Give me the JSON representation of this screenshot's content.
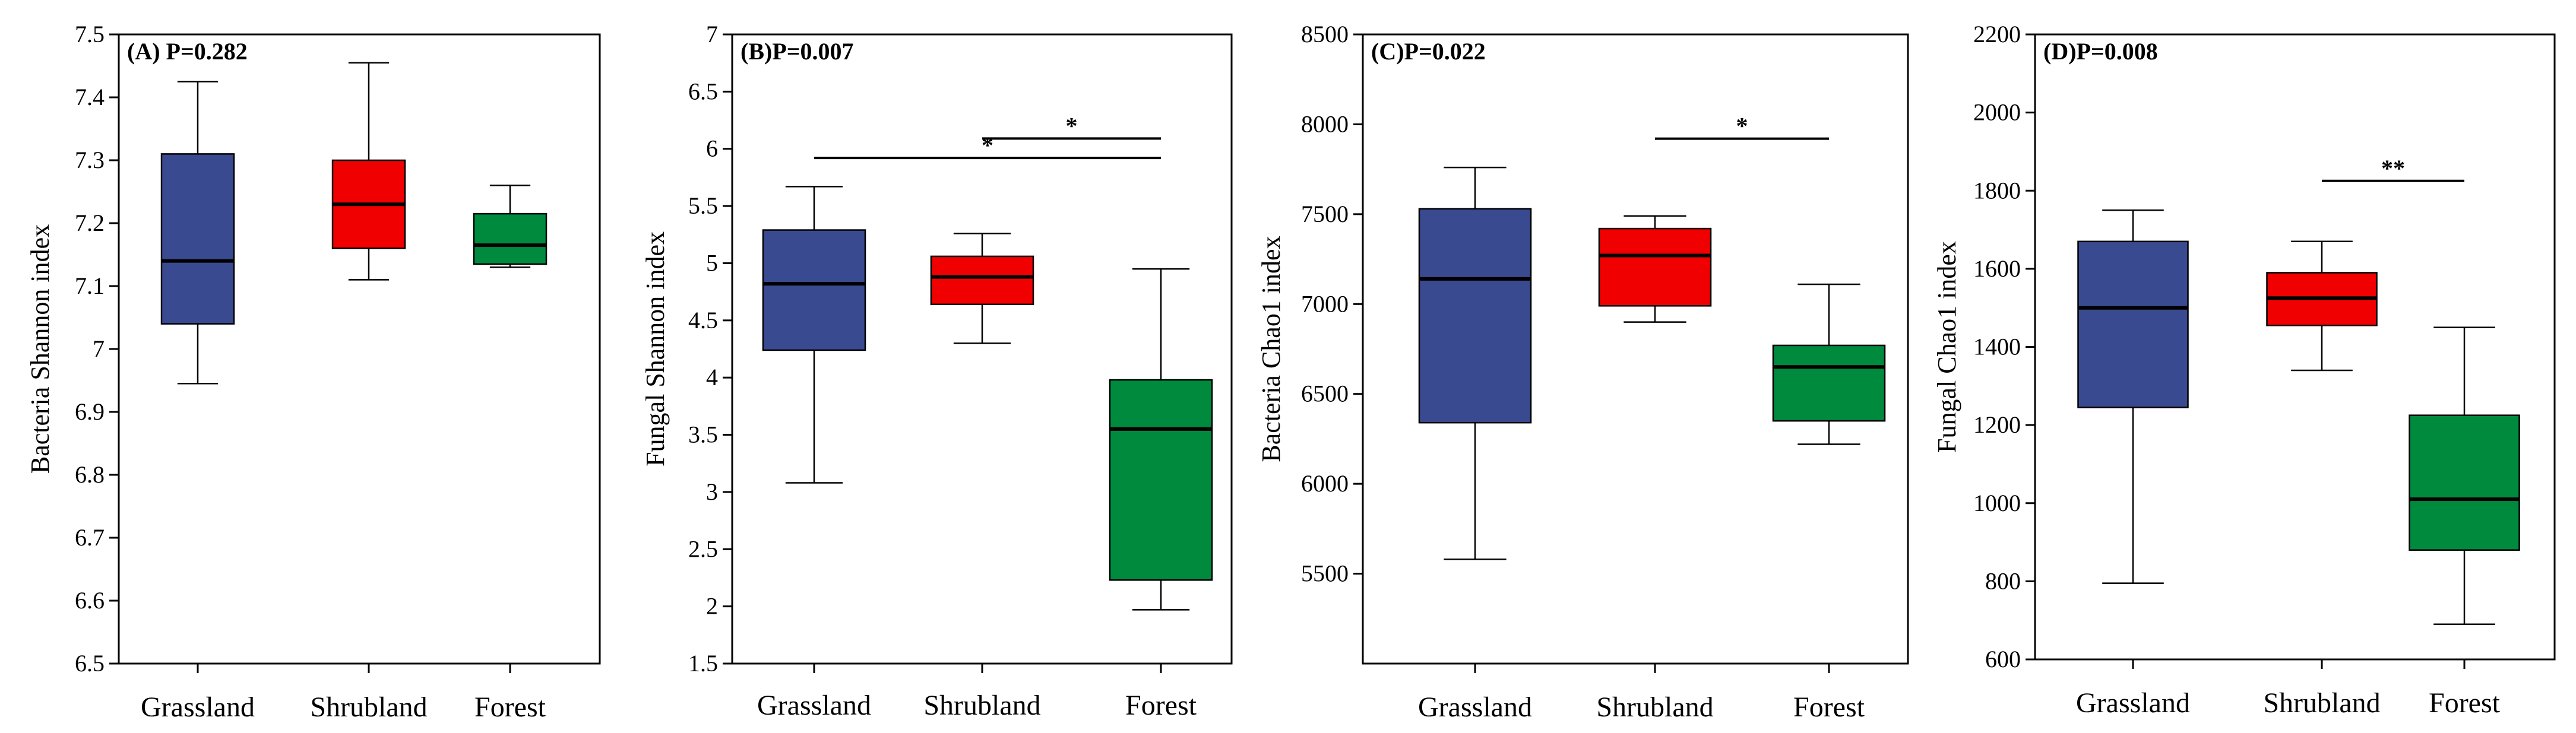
{
  "colors": {
    "Grassland": "#3a4a91",
    "Shrubland": "#f00000",
    "Forest": "#008a3e",
    "axis": "#000000"
  },
  "chart_data": [
    {
      "type": "box",
      "title": "(A) P=0.282",
      "xlabel": "",
      "ylabel": "Bacteria Shannon index",
      "ylim": [
        6.5,
        7.5
      ],
      "yticks": [
        6.5,
        6.6,
        6.7,
        6.8,
        6.9,
        7,
        7.1,
        7.2,
        7.3,
        7.4,
        7.5
      ],
      "categories": [
        "Grassland",
        "Shrubland",
        "Forest"
      ],
      "boxes": [
        {
          "category": "Grassland",
          "min": 6.945,
          "q1": 7.04,
          "median": 7.14,
          "q3": 7.31,
          "max": 7.425
        },
        {
          "category": "Shrubland",
          "min": 7.11,
          "q1": 7.16,
          "median": 7.23,
          "q3": 7.3,
          "max": 7.455
        },
        {
          "category": "Forest",
          "min": 7.13,
          "q1": 7.135,
          "median": 7.165,
          "q3": 7.215,
          "max": 7.26
        }
      ],
      "significance": []
    },
    {
      "type": "box",
      "title": "(B)P=0.007",
      "xlabel": "",
      "ylabel": "Fungal Shannon index",
      "ylim": [
        1.5,
        7
      ],
      "yticks": [
        1.5,
        2,
        2.5,
        3,
        3.5,
        4,
        4.5,
        5,
        5.5,
        6,
        6.5,
        7
      ],
      "categories": [
        "Grassland",
        "Shrubland",
        "Forest"
      ],
      "boxes": [
        {
          "category": "Grassland",
          "min": 3.08,
          "q1": 4.24,
          "median": 4.82,
          "q3": 5.29,
          "max": 5.67
        },
        {
          "category": "Shrubland",
          "min": 4.3,
          "q1": 4.64,
          "median": 4.88,
          "q3": 5.06,
          "max": 5.26
        },
        {
          "category": "Forest",
          "min": 1.97,
          "q1": 2.23,
          "median": 3.55,
          "q3": 3.98,
          "max": 4.95
        }
      ],
      "significance": [
        {
          "from": "Shrubland",
          "to": "Forest",
          "y": 6.09,
          "label": "*"
        },
        {
          "from": "Grassland",
          "to": "Forest",
          "y": 5.92,
          "label": "*"
        }
      ]
    },
    {
      "type": "box",
      "title": "(C)P=0.022",
      "xlabel": "",
      "ylabel": "Bacteria Chao1 index",
      "ylim": [
        5000,
        8500
      ],
      "yticks": [
        5500,
        6000,
        6500,
        7000,
        7500,
        8000,
        8500
      ],
      "categories": [
        "Grassland",
        "Shrubland",
        "Forest"
      ],
      "boxes": [
        {
          "category": "Grassland",
          "min": 5580,
          "q1": 6340,
          "median": 7140,
          "q3": 7530,
          "max": 7760
        },
        {
          "category": "Shrubland",
          "min": 6900,
          "q1": 6990,
          "median": 7270,
          "q3": 7420,
          "max": 7490
        },
        {
          "category": "Forest",
          "min": 6220,
          "q1": 6350,
          "median": 6650,
          "q3": 6770,
          "max": 7110
        }
      ],
      "significance": [
        {
          "from": "Shrubland",
          "to": "Forest",
          "y": 7920,
          "label": "*"
        }
      ]
    },
    {
      "type": "box",
      "title": "(D)P=0.008",
      "xlabel": "",
      "ylabel": "Fungal Chao1 index",
      "ylim": [
        600,
        2200
      ],
      "yticks": [
        600,
        800,
        1000,
        1200,
        1400,
        1600,
        1800,
        2000,
        2200
      ],
      "categories": [
        "Grassland",
        "Shrubland",
        "Forest"
      ],
      "boxes": [
        {
          "category": "Grassland",
          "min": 795,
          "q1": 1245,
          "median": 1500,
          "q3": 1670,
          "max": 1750
        },
        {
          "category": "Shrubland",
          "min": 1340,
          "q1": 1455,
          "median": 1525,
          "q3": 1590,
          "max": 1670
        },
        {
          "category": "Forest",
          "min": 690,
          "q1": 880,
          "median": 1010,
          "q3": 1225,
          "max": 1450
        }
      ],
      "significance": [
        {
          "from": "Shrubland",
          "to": "Forest",
          "y": 1825,
          "label": "**"
        }
      ]
    }
  ]
}
